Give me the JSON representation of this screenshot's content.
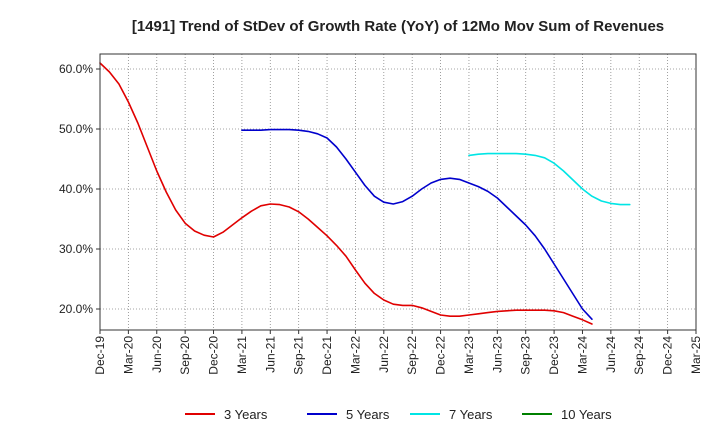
{
  "chart_data": {
    "type": "line",
    "title": "[1491]  Trend of StDev of Growth Rate (YoY) of 12Mo Mov Sum of Revenues",
    "xlabel": "",
    "ylabel": "",
    "ylim": [
      16.5,
      62.5
    ],
    "y_ticks": [
      20,
      30,
      40,
      50,
      60
    ],
    "y_tick_labels": [
      "20.0%",
      "30.0%",
      "40.0%",
      "50.0%",
      "60.0%"
    ],
    "x_tick_labels": [
      "Dec-19",
      "Mar-20",
      "Jun-20",
      "Sep-20",
      "Dec-20",
      "Mar-21",
      "Jun-21",
      "Sep-21",
      "Dec-21",
      "Mar-22",
      "Jun-22",
      "Sep-22",
      "Dec-22",
      "Mar-23",
      "Jun-23",
      "Sep-23",
      "Dec-23",
      "Mar-24",
      "Jun-24",
      "Sep-24",
      "Dec-24",
      "Mar-25"
    ],
    "grid": true,
    "legend_position": "bottom",
    "series": [
      {
        "name": "3 Years",
        "color": "#e00000",
        "start_index": 0,
        "values": [
          61.0,
          59.5,
          57.5,
          54.5,
          51.0,
          47.0,
          43.0,
          39.5,
          36.5,
          34.3,
          33.0,
          32.3,
          32.0,
          32.8,
          34.0,
          35.2,
          36.3,
          37.2,
          37.5,
          37.4,
          37.0,
          36.2,
          35.0,
          33.6,
          32.2,
          30.6,
          28.8,
          26.5,
          24.3,
          22.6,
          21.5,
          20.8,
          20.6,
          20.6,
          20.2,
          19.6,
          19.0,
          18.8,
          18.8,
          19.0,
          19.2,
          19.4,
          19.6,
          19.7,
          19.8,
          19.8,
          19.8,
          19.8,
          19.7,
          19.4,
          18.8,
          18.2,
          17.5
        ]
      },
      {
        "name": "5 Years",
        "color": "#0000cc",
        "start_index": 15,
        "values": [
          49.8,
          49.8,
          49.8,
          49.9,
          49.9,
          49.9,
          49.8,
          49.6,
          49.2,
          48.5,
          47.0,
          45.0,
          42.8,
          40.6,
          38.8,
          37.8,
          37.5,
          37.9,
          38.8,
          40.0,
          41.0,
          41.6,
          41.8,
          41.6,
          41.0,
          40.4,
          39.6,
          38.5,
          37.0,
          35.5,
          34.0,
          32.2,
          30.0,
          27.5,
          25.0,
          22.5,
          20.0,
          18.3
        ]
      },
      {
        "name": "7 Years",
        "color": "#00e5e5",
        "start_index": 39,
        "values": [
          45.6,
          45.8,
          45.9,
          45.9,
          45.9,
          45.9,
          45.8,
          45.6,
          45.2,
          44.3,
          43.0,
          41.5,
          40.0,
          38.8,
          38.0,
          37.6,
          37.4,
          37.4
        ]
      },
      {
        "name": "10 Years",
        "color": "#008000",
        "start_index": 0,
        "values": []
      }
    ]
  }
}
